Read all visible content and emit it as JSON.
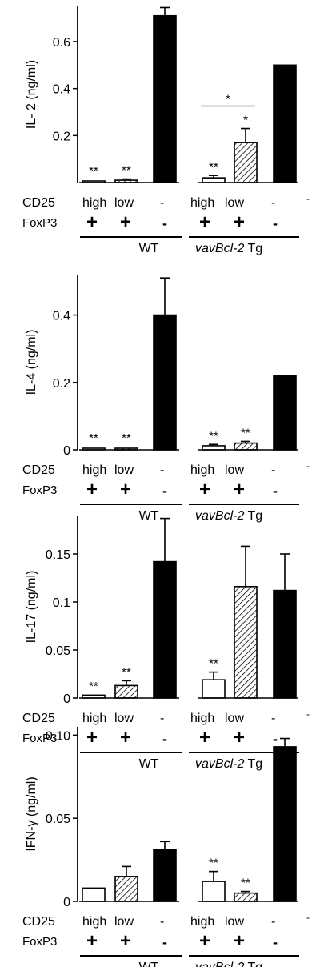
{
  "chart_data": [
    {
      "type": "bar",
      "ylabel": "IL- 2 (ng/ml)",
      "ylim": [
        0,
        0.75
      ],
      "yticks": [
        0.2,
        0.4,
        0.6
      ],
      "ytick_labels": [
        "0.2",
        "0.4",
        "0.6"
      ],
      "categories": [
        "WT CD25 high FoxP3 +",
        "WT CD25 low FoxP3 +",
        "WT CD25 - FoxP3 -",
        "vavBcl-2 Tg CD25 high FoxP3 +",
        "vavBcl-2 Tg CD25 low FoxP3 +",
        "vavBcl-2 Tg CD25 - FoxP3 -"
      ],
      "values": [
        0.005,
        0.01,
        0.71,
        0.02,
        0.17,
        0.5
      ],
      "errors": [
        0,
        0.005,
        0.035,
        0.01,
        0.06,
        0
      ],
      "fills": [
        "white",
        "hatched",
        "black",
        "white",
        "hatched",
        "black"
      ],
      "annotations": [
        "**",
        "**",
        "",
        "**",
        "*",
        ""
      ],
      "bracket": {
        "from": 3,
        "to": 4,
        "label": "*"
      }
    },
    {
      "type": "bar",
      "ylabel": "IL-4 (ng/ml)",
      "ylim": [
        0,
        0.52
      ],
      "yticks": [
        0,
        0.2,
        0.4
      ],
      "ytick_labels": [
        "0",
        "0.2",
        "0.4"
      ],
      "categories": [
        "WT CD25 high FoxP3 +",
        "WT CD25 low FoxP3 +",
        "WT CD25 - FoxP3 -",
        "vavBcl-2 Tg CD25 high FoxP3 +",
        "vavBcl-2 Tg CD25 low FoxP3 +",
        "vavBcl-2 Tg CD25 - FoxP3 -"
      ],
      "values": [
        0.003,
        0.003,
        0.4,
        0.012,
        0.02,
        0.22
      ],
      "errors": [
        0,
        0,
        0.11,
        0.004,
        0.005,
        0
      ],
      "fills": [
        "white",
        "hatched",
        "black",
        "white",
        "hatched",
        "black"
      ],
      "annotations": [
        "**",
        "**",
        "",
        "**",
        "**",
        ""
      ]
    },
    {
      "type": "bar",
      "ylabel": "IL-17 (ng/ml)",
      "ylim": [
        0,
        0.19
      ],
      "yticks": [
        0,
        0.05,
        0.1,
        0.15
      ],
      "ytick_labels": [
        "0",
        "0.05",
        "0.1",
        "0.15"
      ],
      "categories": [
        "WT CD25 high FoxP3 +",
        "WT CD25 low FoxP3 +",
        "WT CD25 - FoxP3 -",
        "vavBcl-2 Tg CD25 high FoxP3 +",
        "vavBcl-2 Tg CD25 low FoxP3 +",
        "vavBcl-2 Tg CD25 - FoxP3 -"
      ],
      "values": [
        0.003,
        0.013,
        0.142,
        0.019,
        0.116,
        0.112
      ],
      "errors": [
        0,
        0.005,
        0.045,
        0.008,
        0.042,
        0.038
      ],
      "fills": [
        "white",
        "hatched",
        "black",
        "white",
        "hatched",
        "black"
      ],
      "annotations": [
        "**",
        "**",
        "",
        "**",
        "",
        ""
      ]
    },
    {
      "type": "bar",
      "ylabel": "IFN-γ (ng/ml)",
      "ylim": [
        0,
        0.105
      ],
      "yticks": [
        0,
        0.05,
        0.1
      ],
      "ytick_labels": [
        "0",
        "0.05",
        "0.10"
      ],
      "categories": [
        "WT CD25 high FoxP3 +",
        "WT CD25 low FoxP3 +",
        "WT CD25 - FoxP3 -",
        "vavBcl-2 Tg CD25 high FoxP3 +",
        "vavBcl-2 Tg CD25 low FoxP3 +",
        "vavBcl-2 Tg CD25 - FoxP3 -"
      ],
      "values": [
        0.008,
        0.015,
        0.031,
        0.012,
        0.005,
        0.093
      ],
      "errors": [
        0,
        0.006,
        0.005,
        0.006,
        0.001,
        0.005
      ],
      "fills": [
        "white",
        "hatched",
        "black",
        "white",
        "hatched",
        "black"
      ],
      "annotations": [
        "",
        "",
        "",
        "**",
        "**",
        ""
      ]
    }
  ],
  "labels": {
    "cd25": "CD25",
    "foxp3": "FoxP3",
    "high": "high",
    "low": "low",
    "minus": "-",
    "plus": "+",
    "wt": "WT",
    "tg_italic": "vavBcl-2",
    "tg_suffix": " Tg"
  },
  "colors": {
    "bar": "#000000",
    "background": "#ffffff",
    "hatch": "#000000"
  }
}
